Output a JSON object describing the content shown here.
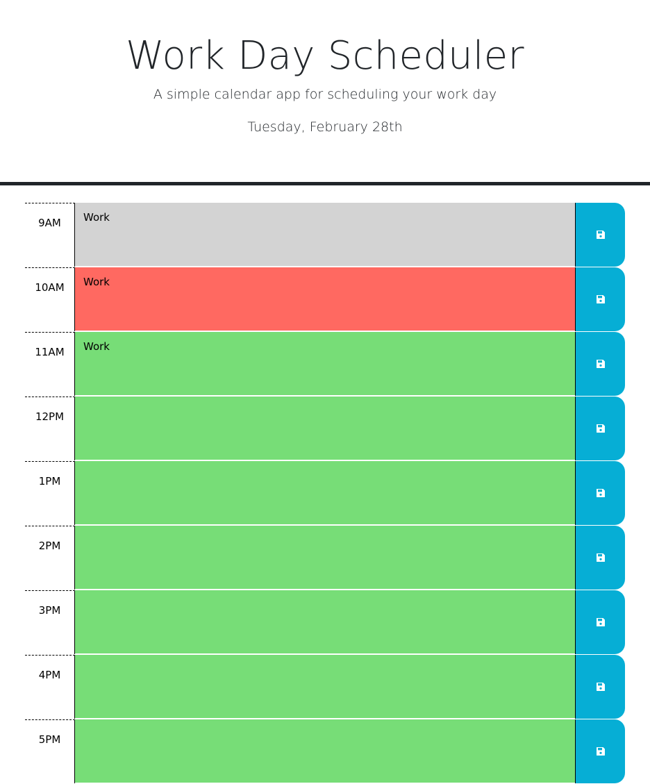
{
  "header": {
    "title": "Work Day Scheduler",
    "lead": "A simple calendar app for scheduling your work day",
    "current_day": "Tuesday, February 28th"
  },
  "colors": {
    "past": "#d3d3d3",
    "present": "#ff6961",
    "future": "#77dd77",
    "save_button": "#06aed5",
    "save_icon": "#ffffff"
  },
  "time_blocks": [
    {
      "hour": "9AM",
      "text": "Work",
      "state": "past",
      "save_icon": "floppy-disk-icon"
    },
    {
      "hour": "10AM",
      "text": "Work",
      "state": "present",
      "save_icon": "floppy-disk-icon"
    },
    {
      "hour": "11AM",
      "text": "Work",
      "state": "future",
      "save_icon": "floppy-disk-icon"
    },
    {
      "hour": "12PM",
      "text": "",
      "state": "future",
      "save_icon": "floppy-disk-icon"
    },
    {
      "hour": "1PM",
      "text": "",
      "state": "future",
      "save_icon": "floppy-disk-icon"
    },
    {
      "hour": "2PM",
      "text": "",
      "state": "future",
      "save_icon": "floppy-disk-icon"
    },
    {
      "hour": "3PM",
      "text": "",
      "state": "future",
      "save_icon": "floppy-disk-icon"
    },
    {
      "hour": "4PM",
      "text": "",
      "state": "future",
      "save_icon": "floppy-disk-icon"
    },
    {
      "hour": "5PM",
      "text": "",
      "state": "future",
      "save_icon": "floppy-disk-icon"
    }
  ]
}
